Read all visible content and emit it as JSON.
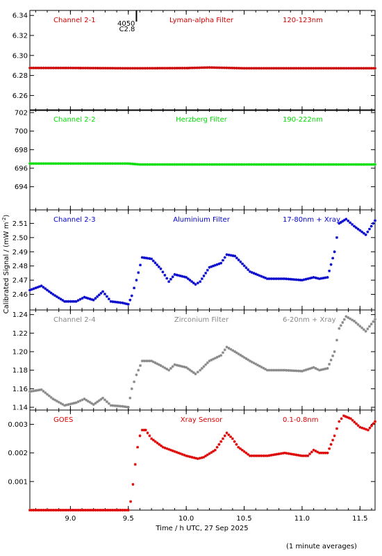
{
  "chart_data": {
    "type": "scatter",
    "xlabel": "Time / h UTC, 27 Sep 2025",
    "ylabel": "Calibrated Signal / (mW m",
    "ylabel_sup": "-2",
    "ylabel_close": ")",
    "xlim": [
      8.65,
      11.63
    ],
    "xticks": [
      9.0,
      9.5,
      10.0,
      10.5,
      11.0,
      11.5
    ],
    "xtick_labels": [
      "9.0",
      "9.5",
      "10.0",
      "10.5",
      "11.0",
      "11.5"
    ],
    "footnote": "(1 minute averages)",
    "flare_marker": {
      "x": 9.57,
      "label_top": "4050",
      "label_bottom": "C2.8"
    },
    "panels": [
      {
        "channel": "Channel 2-1",
        "filter": "Lyman-alpha Filter",
        "band": "120-123nm",
        "color": "#cc0000",
        "ylim": [
          6.245,
          6.345
        ],
        "yticks": [
          6.26,
          6.28,
          6.3,
          6.32,
          6.34
        ],
        "ytick_labels": [
          "6.26",
          "6.28",
          "6.30",
          "6.32",
          "6.34"
        ],
        "x": [
          8.65,
          9.0,
          9.5,
          9.6,
          10.0,
          10.2,
          10.5,
          11.0,
          11.63
        ],
        "y": [
          6.2875,
          6.2875,
          6.2872,
          6.2872,
          6.2874,
          6.288,
          6.2872,
          6.2872,
          6.2872
        ]
      },
      {
        "channel": "Channel 2-2",
        "filter": "Herzberg Filter",
        "band": "190-222nm",
        "color": "#00dd00",
        "ylim": [
          691.5,
          702.3
        ],
        "yticks": [
          694,
          696,
          698,
          700,
          702
        ],
        "ytick_labels": [
          "694",
          "696",
          "698",
          "700",
          "702"
        ],
        "x": [
          8.65,
          9.0,
          9.5,
          9.6,
          10.0,
          10.5,
          11.0,
          11.63
        ],
        "y": [
          696.5,
          696.5,
          696.5,
          696.4,
          696.4,
          696.4,
          696.4,
          696.4
        ]
      },
      {
        "channel": "Channel 2-3",
        "filter": "Aluminium Filter",
        "band": "17-80nm + Xray",
        "color": "#0000cc",
        "ylim": [
          2.449,
          2.5195
        ],
        "yticks": [
          2.46,
          2.47,
          2.48,
          2.49,
          2.5,
          2.51
        ],
        "ytick_labels": [
          "2.46",
          "2.47",
          "2.48",
          "2.49",
          "2.50",
          "2.51"
        ],
        "x": [
          8.65,
          8.75,
          8.85,
          8.95,
          9.05,
          9.12,
          9.2,
          9.28,
          9.35,
          9.45,
          9.5,
          9.53,
          9.57,
          9.62,
          9.7,
          9.78,
          9.85,
          9.9,
          10.0,
          10.08,
          10.12,
          10.2,
          10.3,
          10.35,
          10.42,
          10.55,
          10.7,
          10.85,
          11.0,
          11.1,
          11.15,
          11.22,
          11.28,
          11.32,
          11.38,
          11.45,
          11.55,
          11.63
        ],
        "y": [
          2.463,
          2.466,
          2.46,
          2.455,
          2.455,
          2.458,
          2.456,
          2.462,
          2.455,
          2.454,
          2.453,
          2.459,
          2.47,
          2.486,
          2.485,
          2.478,
          2.469,
          2.474,
          2.472,
          2.467,
          2.469,
          2.479,
          2.482,
          2.488,
          2.487,
          2.476,
          2.471,
          2.471,
          2.47,
          2.472,
          2.471,
          2.472,
          2.49,
          2.51,
          2.513,
          2.508,
          2.502,
          2.512
        ]
      },
      {
        "channel": "Channel 2-4",
        "filter": "Zirconium Filter",
        "band": "6-20nm + Xray",
        "color": "#888888",
        "ylim": [
          1.137,
          1.245
        ],
        "yticks": [
          1.14,
          1.16,
          1.18,
          1.2,
          1.22,
          1.24
        ],
        "ytick_labels": [
          "1.14",
          "1.16",
          "1.18",
          "1.20",
          "1.22",
          "1.24"
        ],
        "x": [
          8.65,
          8.75,
          8.85,
          8.95,
          9.05,
          9.12,
          9.2,
          9.28,
          9.35,
          9.45,
          9.5,
          9.53,
          9.57,
          9.62,
          9.7,
          9.78,
          9.85,
          9.9,
          10.0,
          10.08,
          10.12,
          10.2,
          10.3,
          10.35,
          10.42,
          10.55,
          10.7,
          10.85,
          11.0,
          11.1,
          11.15,
          11.22,
          11.28,
          11.32,
          11.38,
          11.45,
          11.55,
          11.63
        ],
        "y": [
          1.157,
          1.159,
          1.149,
          1.142,
          1.145,
          1.149,
          1.143,
          1.15,
          1.142,
          1.141,
          1.14,
          1.16,
          1.175,
          1.19,
          1.19,
          1.185,
          1.18,
          1.186,
          1.183,
          1.176,
          1.18,
          1.19,
          1.196,
          1.205,
          1.2,
          1.19,
          1.18,
          1.18,
          1.179,
          1.183,
          1.18,
          1.182,
          1.2,
          1.225,
          1.238,
          1.233,
          1.222,
          1.235
        ]
      },
      {
        "channel": "GOES",
        "filter": "Xray Sensor",
        "band": "0.1-0.8nm",
        "color": "#dd0000",
        "ylim": [
          0.0,
          0.0035
        ],
        "yticks": [
          0.001,
          0.002,
          0.003
        ],
        "ytick_labels": [
          "0.001",
          "0.002",
          "0.003"
        ],
        "x": [
          8.65,
          9.0,
          9.5,
          9.52,
          9.54,
          9.56,
          9.58,
          9.6,
          9.62,
          9.65,
          9.7,
          9.8,
          9.9,
          10.0,
          10.1,
          10.15,
          10.25,
          10.3,
          10.35,
          10.4,
          10.45,
          10.55,
          10.7,
          10.85,
          11.0,
          11.05,
          11.1,
          11.15,
          11.22,
          11.28,
          11.32,
          11.36,
          11.42,
          11.5,
          11.57,
          11.63
        ],
        "y": [
          0.0,
          0.0,
          0.0,
          0.0003,
          0.0009,
          0.0016,
          0.0022,
          0.0026,
          0.0028,
          0.0028,
          0.0025,
          0.0022,
          0.00205,
          0.0019,
          0.0018,
          0.00185,
          0.0021,
          0.0024,
          0.0027,
          0.0025,
          0.0022,
          0.0019,
          0.0019,
          0.002,
          0.0019,
          0.0019,
          0.0021,
          0.002,
          0.002,
          0.0026,
          0.0031,
          0.0033,
          0.0032,
          0.0029,
          0.0028,
          0.0031
        ]
      }
    ]
  }
}
